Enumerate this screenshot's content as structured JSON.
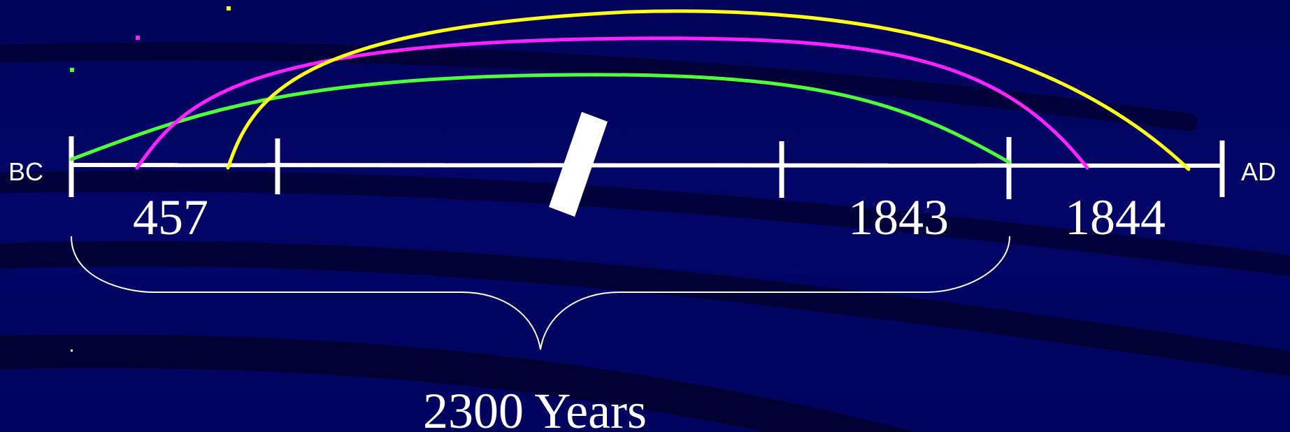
{
  "timeline": {
    "left_era": "BC",
    "right_era": "AD",
    "years": {
      "start": "457",
      "first_end": "1843",
      "second_end": "1844"
    },
    "span": "2300 Years"
  },
  "colors": {
    "background": "#02035e",
    "axis": "#ffffff",
    "arc_green": "#4cff3a",
    "arc_magenta": "#ff22ff",
    "arc_yellow": "#ffff1a"
  }
}
